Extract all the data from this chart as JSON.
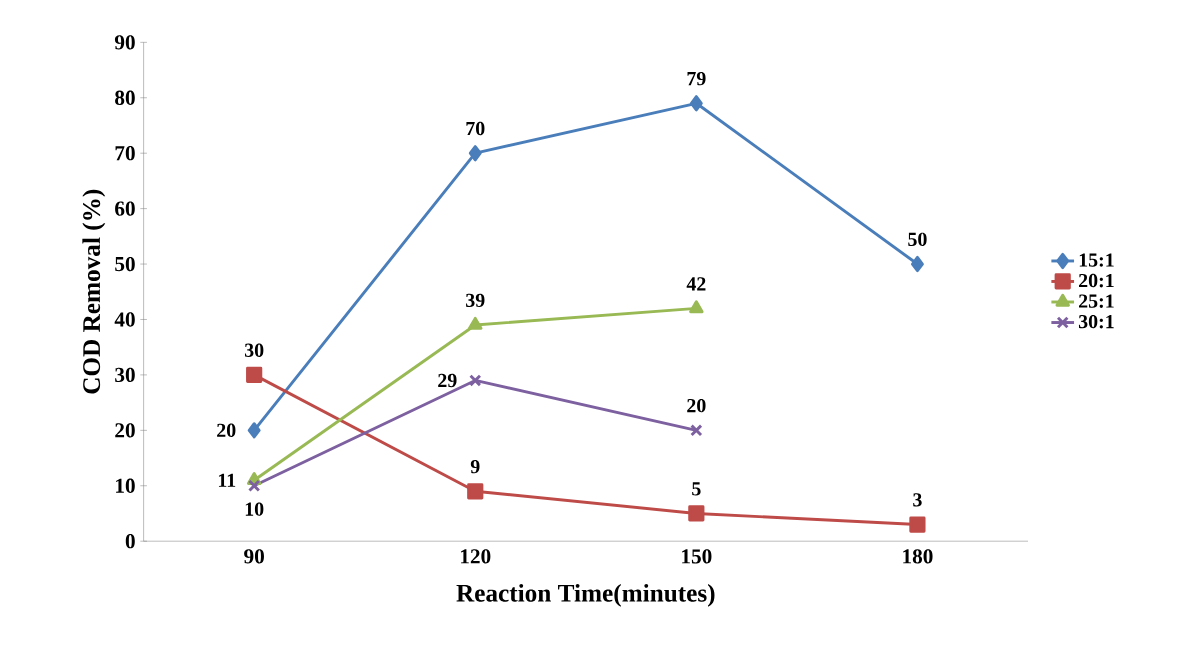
{
  "chart_data": {
    "type": "line",
    "xlabel": "Reaction Time(minutes)",
    "ylabel": "COD Removal (%)",
    "categories": [
      "90",
      "120",
      "150",
      "180"
    ],
    "series": [
      {
        "name": "15:1",
        "color": "#4a7ebb",
        "marker": "diamond",
        "values": [
          20,
          70,
          79,
          50
        ]
      },
      {
        "name": "20:1",
        "color": "#be4b48",
        "marker": "square",
        "values": [
          30,
          9,
          5,
          3
        ]
      },
      {
        "name": "25:1",
        "color": "#98b954",
        "marker": "triangle",
        "values": [
          11,
          39,
          42,
          null
        ]
      },
      {
        "name": "30:1",
        "color": "#7d60a0",
        "marker": "cross",
        "values": [
          10,
          29,
          20,
          null
        ]
      }
    ],
    "ylim": [
      0,
      90
    ],
    "yticks": [
      0,
      10,
      20,
      30,
      40,
      50,
      60,
      70,
      80,
      90
    ],
    "data_labels": true,
    "legend": "right",
    "grid": false,
    "line_style": "solid"
  }
}
